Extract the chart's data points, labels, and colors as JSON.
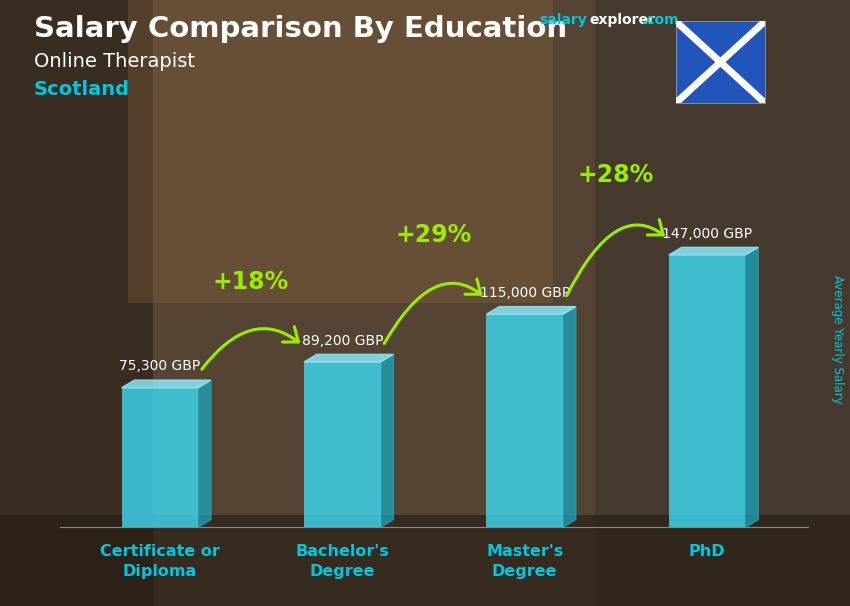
{
  "title_main": "Salary Comparison By Education",
  "salary_text": "salary",
  "explorer_text": "explorer",
  "com_text": ".com",
  "subtitle_job": "Online Therapist",
  "subtitle_location": "Scotland",
  "ylabel": "Average Yearly Salary",
  "categories": [
    "Certificate or\nDiploma",
    "Bachelor's\nDegree",
    "Master's\nDegree",
    "PhD"
  ],
  "values": [
    75300,
    89200,
    115000,
    147000
  ],
  "labels": [
    "75,300 GBP",
    "89,200 GBP",
    "115,000 GBP",
    "147,000 GBP"
  ],
  "pct_changes": [
    "+18%",
    "+29%",
    "+28%"
  ],
  "bar_color_face": "#3dd8f0",
  "bar_color_dark": "#1ba8c0",
  "bar_color_top": "#90eeff",
  "bar_alpha": 0.82,
  "bg_color": "#6b5a4e",
  "title_color": "#ffffff",
  "salary_color": "#00c8e0",
  "explorer_color": "#ffffff",
  "com_color": "#00c8e0",
  "subtitle_job_color": "#ffffff",
  "subtitle_loc_color": "#00c8e0",
  "label_color": "#ffffff",
  "pct_color": "#99ee00",
  "arrow_color": "#99ee00",
  "xtick_color": "#00c8e0",
  "ylabel_color": "#00c8e0",
  "figsize": [
    8.5,
    6.06
  ],
  "dpi": 100
}
